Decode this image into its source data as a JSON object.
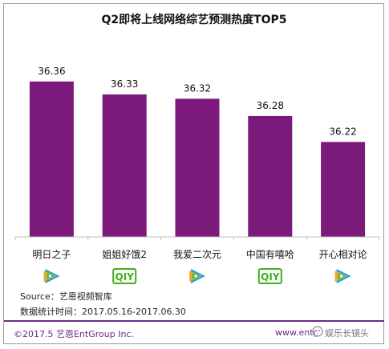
{
  "chart_data": {
    "type": "bar",
    "title": "Q2即将上线网络综艺预测热度TOP5",
    "categories": [
      "明日之子",
      "姐姐好饿2",
      "我爱二次元",
      "中国有嘻哈",
      "开心相对论"
    ],
    "values": [
      36.36,
      36.33,
      36.32,
      36.28,
      36.22
    ],
    "data_labels": [
      "36.36",
      "36.33",
      "36.32",
      "36.28",
      "36.22"
    ],
    "platform_icons": [
      "tencent-video-icon",
      "iqiyi-icon",
      "tencent-video-icon",
      "iqiyi-icon",
      "tencent-video-icon"
    ],
    "iqiyi_text": "QIY",
    "ylim": [
      36.0,
      36.38
    ],
    "grid": false,
    "legend": "none",
    "xlabel": "",
    "ylabel": "",
    "bar_color": "#7b1a7b"
  },
  "source_line": "Source：艺恩视频智库",
  "stats_line": "数据统计时间：2017.05.16-2017.06.30",
  "copyright": "©2017.5 艺恩EntGroup Inc.",
  "website": "www.entg",
  "watermark": "娱乐长镜头",
  "colors": {
    "accent": "#6a2a86",
    "iqiyi_green": "#3cb11a"
  }
}
